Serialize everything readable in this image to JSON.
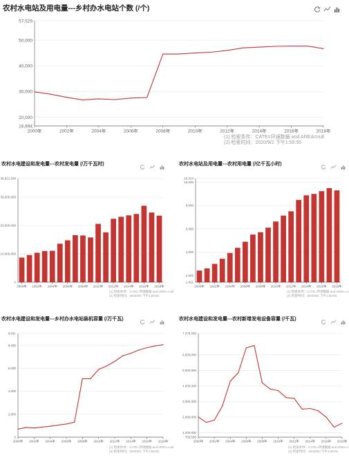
{
  "charts_meta": {
    "source_line1": "(1) 检索条件：CATE=环境数据 and AREA=null",
    "source_line2": "(2) 检索时间：2020/9/2 下午1:59:55",
    "toolbar_icons": [
      "refresh-icon",
      "line-chart-icon",
      "bar-chart-icon"
    ]
  },
  "chart_data": [
    {
      "id": "c1",
      "type": "line",
      "title": "农村水电站及用电量---乡村办水电站个数 (/个)",
      "color": "#c23531",
      "x": [
        2000,
        2001,
        2002,
        2003,
        2004,
        2005,
        2006,
        2007,
        2008,
        2009,
        2010,
        2011,
        2012,
        2013,
        2014,
        2015,
        2016,
        2017,
        2018
      ],
      "xticks": [
        "2000年",
        "2002年",
        "2004年",
        "2006年",
        "2008年",
        "2010年",
        "2012年",
        "2014年",
        "2016年",
        "2018年"
      ],
      "yticks": [
        "16,694",
        "20,000",
        "30,000",
        "40,000",
        "50,000",
        "57,529"
      ],
      "ytick_values": [
        16694,
        20000,
        30000,
        40000,
        50000,
        57529
      ],
      "ylim": [
        16694,
        57529
      ],
      "values": [
        29900,
        29000,
        27800,
        26800,
        27200,
        26900,
        27500,
        27700,
        44600,
        44600,
        45000,
        45300,
        46000,
        47000,
        47300,
        47600,
        47700,
        47700,
        46700
      ]
    },
    {
      "id": "c2",
      "type": "bar",
      "title": "农村水电建设和发电量---农村发电量 (/万千瓦时)",
      "color": "#c23531",
      "x": [
        2000,
        2001,
        2002,
        2003,
        2004,
        2005,
        2006,
        2007,
        2008,
        2009,
        2010,
        2011,
        2012,
        2013,
        2014,
        2015,
        2016,
        2017,
        2018
      ],
      "xticks": [
        "2000年",
        "2002年",
        "2004年",
        "2006年",
        "2008年",
        "2010年",
        "2012年",
        "2014年",
        "2016年",
        "2018年"
      ],
      "yticks": [
        "0",
        "10,000,000",
        "20,000,000",
        "30,000,000",
        "36,621,500"
      ],
      "ytick_values": [
        0,
        10000000,
        20000000,
        30000000,
        36621500
      ],
      "ylim": [
        0,
        36621500
      ],
      "values": [
        8700000,
        9600000,
        10400000,
        11000000,
        11100000,
        13600000,
        14800000,
        16600000,
        16500000,
        15800000,
        20600000,
        17600000,
        22400000,
        23100000,
        23600000,
        24100000,
        27000000,
        24600000,
        23500000
      ]
    },
    {
      "id": "c3",
      "type": "bar",
      "title": "农村水电站及用电量---农村用电量 (/亿千瓦小时)",
      "color": "#c23531",
      "x": [
        2000,
        2001,
        2002,
        2003,
        2004,
        2005,
        2006,
        2007,
        2008,
        2009,
        2010,
        2011,
        2012,
        2013,
        2014,
        2015,
        2016,
        2017,
        2018
      ],
      "xticks": [
        "2000年",
        "2002年",
        "2004年",
        "2006年",
        "2008年",
        "2010年",
        "2012年",
        "2014年",
        "2016年",
        "2018年"
      ],
      "yticks": [
        "1,421",
        "2,000",
        "4,000",
        "6,000",
        "8,000",
        "10,000",
        "10,324"
      ],
      "ytick_values": [
        1421,
        2000,
        4000,
        6000,
        8000,
        10000,
        10324
      ],
      "ylim": [
        1421,
        10324
      ],
      "values": [
        2421,
        2610,
        2993,
        3433,
        3933,
        4375,
        4896,
        5509,
        5713,
        6105,
        6632,
        7139,
        7509,
        8480,
        8880,
        9000,
        9238,
        9500,
        9300
      ]
    },
    {
      "id": "c4",
      "type": "line",
      "title": "农村水电建设和发电量---乡村办水电站装机容量 (/万千瓦)",
      "color": "#c23531",
      "x": [
        2000,
        2001,
        2002,
        2003,
        2004,
        2005,
        2006,
        2007,
        2008,
        2009,
        2010,
        2011,
        2012,
        2013,
        2014,
        2015,
        2016,
        2017,
        2018
      ],
      "xticks": [
        "2000年",
        "2002年",
        "2004年",
        "2006年",
        "2008年",
        "2010年",
        "2012年",
        "2014年",
        "2016年",
        "2018年"
      ],
      "yticks": [
        "0",
        "2,000",
        "4,000",
        "6,000",
        "8,000",
        "9,041"
      ],
      "ytick_values": [
        0,
        2000,
        4000,
        6000,
        8000,
        9041
      ],
      "ylim": [
        0,
        9041
      ],
      "values": [
        700,
        850,
        800,
        880,
        950,
        1050,
        1150,
        1300,
        5100,
        5100,
        5900,
        6200,
        6600,
        7100,
        7300,
        7600,
        7800,
        7950,
        8050
      ]
    },
    {
      "id": "c5",
      "type": "line",
      "title": "农村水电建设和发电量---农村新增发电设备容量 (/千瓦)",
      "color": "#c23531",
      "x": [
        2000,
        2001,
        2002,
        2003,
        2004,
        2005,
        2006,
        2007,
        2008,
        2009,
        2010,
        2011,
        2012,
        2013,
        2014,
        2015,
        2016,
        2017,
        2018
      ],
      "xticks": [
        "2000年",
        "2002年",
        "2004年",
        "2006年",
        "2008年",
        "2010年",
        "2012年",
        "2014年",
        "2016年",
        "2018年"
      ],
      "yticks": [
        "703,500",
        "1,000,000",
        "2,000,000",
        "3,000,000",
        "4,000,000",
        "5,000,000",
        "6,000,000",
        "7,378,000"
      ],
      "ytick_values": [
        703500,
        1000000,
        2000000,
        3000000,
        4000000,
        5000000,
        6000000,
        7378000
      ],
      "ylim": [
        703500,
        7378000
      ],
      "values": [
        2000000,
        1650000,
        1800000,
        2700000,
        4300000,
        4850000,
        6450000,
        6600000,
        4200000,
        3800000,
        3700000,
        3250000,
        3200000,
        2500000,
        2550000,
        2400000,
        2000000,
        1350000,
        1600000
      ]
    }
  ]
}
